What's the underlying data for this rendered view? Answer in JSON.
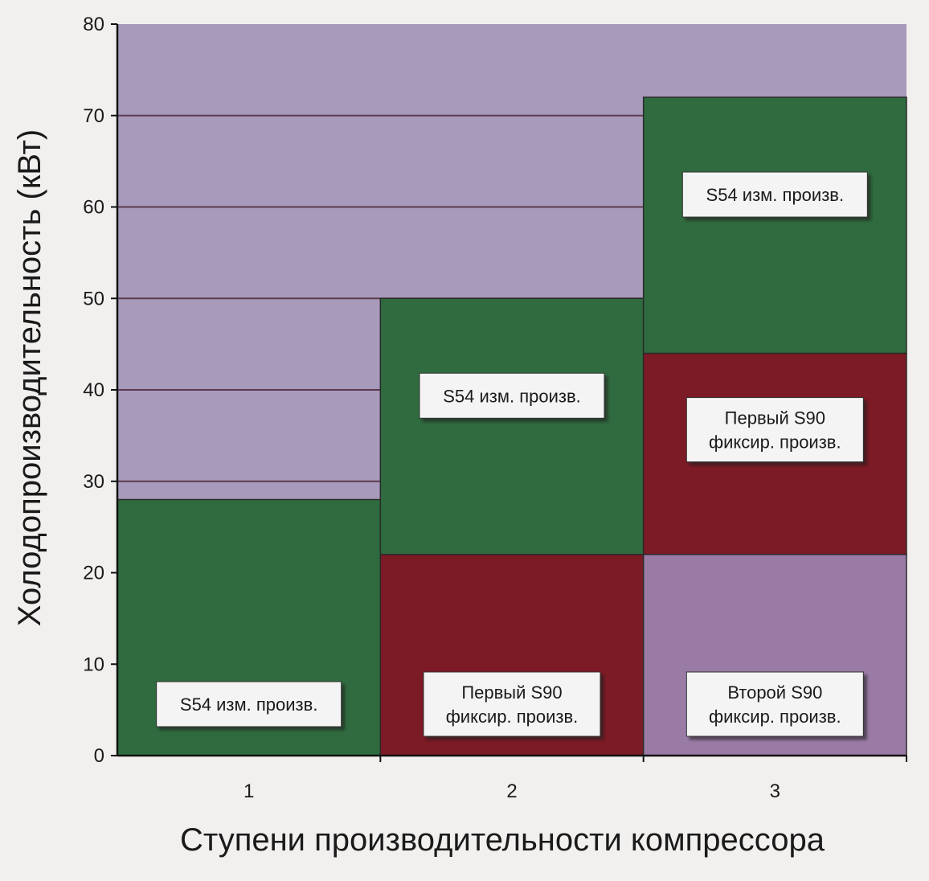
{
  "chart_data": {
    "type": "bar",
    "stacked": true,
    "title": "",
    "xlabel": "Ступени производительности компрессора",
    "ylabel": "Холодопроизводительность (кВт)",
    "ylim": [
      0,
      80
    ],
    "yticks": [
      0,
      10,
      20,
      30,
      40,
      50,
      60,
      70,
      80
    ],
    "categories": [
      "1",
      "2",
      "3"
    ],
    "grid": true,
    "legend": "none",
    "colors": {
      "plot_bg": "#a79abb",
      "variable": "#2f6b3e",
      "fixed_first": "#7c1a25",
      "fixed_second": "#9a7ba6",
      "gridline": "#5c3a4c",
      "label_box": "#f4f4f4"
    },
    "stacks": [
      {
        "category": "1",
        "segments": [
          {
            "from": 0,
            "to": 28,
            "role": "variable",
            "label": [
              "S54 изм. произв."
            ]
          }
        ]
      },
      {
        "category": "2",
        "segments": [
          {
            "from": 0,
            "to": 22,
            "role": "fixed_first",
            "label": [
              "Первый S90",
              "фиксир. произв."
            ]
          },
          {
            "from": 22,
            "to": 50,
            "role": "variable",
            "label": [
              "S54 изм. произв."
            ]
          }
        ]
      },
      {
        "category": "3",
        "segments": [
          {
            "from": 0,
            "to": 22,
            "role": "fixed_second",
            "label": [
              "Второй S90",
              "фиксир. произв."
            ]
          },
          {
            "from": 22,
            "to": 44,
            "role": "fixed_first",
            "label": [
              "Первый S90",
              "фиксир. произв."
            ]
          },
          {
            "from": 44,
            "to": 72,
            "role": "variable",
            "label": [
              "S54 изм. произв."
            ]
          }
        ]
      }
    ]
  }
}
